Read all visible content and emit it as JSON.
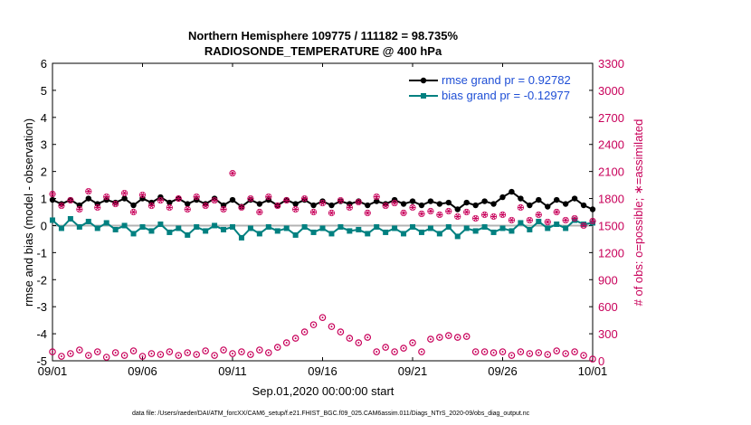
{
  "colors": {
    "rmse": "#000000",
    "bias": "#008080",
    "obs": "#c8005a",
    "legend_text": "#1f4fd6",
    "zero_line": "#b3b3b3"
  },
  "chart_data": {
    "type": "line",
    "title_line1": "Northern Hemisphere 109775 / 111182 = 98.735%",
    "title_line2": "RADIOSONDE_TEMPERATURE @ 400 hPa",
    "xlabel": "Sep.01,2020 00:00:00 start",
    "ylabel_left": "rmse and bias (model - observation)",
    "ylabel_right": "# of obs: o=possible; ∗=assimilated",
    "xlim": [
      0,
      30
    ],
    "ylim_left": [
      -5,
      6
    ],
    "ylim_right": [
      0,
      3300
    ],
    "x_ticks": [
      0,
      5,
      10,
      15,
      20,
      25,
      30
    ],
    "x_tick_labels": [
      "09/01",
      "09/06",
      "09/11",
      "09/16",
      "09/21",
      "09/26",
      "10/01"
    ],
    "y_ticks_left": [
      -5,
      -4,
      -3,
      -2,
      -1,
      0,
      1,
      2,
      3,
      4,
      5,
      6
    ],
    "y_ticks_right": [
      0,
      300,
      600,
      900,
      1200,
      1500,
      1800,
      2100,
      2400,
      2700,
      3000,
      3300
    ],
    "legend": [
      {
        "name": "rmse grand pr = 0.92782",
        "series": "rmse"
      },
      {
        "name": "bias grand pr = -0.12977",
        "series": "bias"
      }
    ],
    "series": [
      {
        "name": "rmse",
        "x": [
          0,
          0.5,
          1,
          1.5,
          2,
          2.5,
          3,
          3.5,
          4,
          4.5,
          5,
          5.5,
          6,
          6.5,
          7,
          7.5,
          8,
          8.5,
          9,
          9.5,
          10,
          10.5,
          11,
          11.5,
          12,
          12.5,
          13,
          13.5,
          14,
          14.5,
          15,
          15.5,
          16,
          16.5,
          17,
          17.5,
          18,
          18.5,
          19,
          19.5,
          20,
          20.5,
          21,
          21.5,
          22,
          22.5,
          23,
          23.5,
          24,
          24.5,
          25,
          25.5,
          26,
          26.5,
          27,
          27.5,
          28,
          28.5,
          29,
          29.5,
          30
        ],
        "values": [
          0.95,
          0.8,
          0.95,
          0.75,
          1.0,
          0.8,
          0.95,
          0.85,
          1.0,
          0.75,
          1.0,
          0.85,
          1.05,
          0.85,
          1.0,
          0.8,
          0.95,
          0.8,
          1.0,
          0.75,
          0.95,
          0.7,
          0.95,
          0.8,
          0.95,
          0.75,
          0.95,
          0.8,
          0.95,
          0.75,
          0.9,
          0.75,
          0.9,
          0.8,
          0.9,
          0.75,
          0.9,
          0.8,
          0.95,
          0.8,
          0.9,
          0.75,
          0.9,
          0.8,
          0.85,
          0.6,
          0.85,
          0.75,
          0.9,
          0.8,
          1.05,
          1.25,
          1.0,
          0.75,
          0.95,
          0.7,
          0.95,
          0.8,
          1.0,
          0.75,
          0.6
        ]
      },
      {
        "name": "bias",
        "x": [
          0,
          0.5,
          1,
          1.5,
          2,
          2.5,
          3,
          3.5,
          4,
          4.5,
          5,
          5.5,
          6,
          6.5,
          7,
          7.5,
          8,
          8.5,
          9,
          9.5,
          10,
          10.5,
          11,
          11.5,
          12,
          12.5,
          13,
          13.5,
          14,
          14.5,
          15,
          15.5,
          16,
          16.5,
          17,
          17.5,
          18,
          18.5,
          19,
          19.5,
          20,
          20.5,
          21,
          21.5,
          22,
          22.5,
          23,
          23.5,
          24,
          24.5,
          25,
          25.5,
          26,
          26.5,
          27,
          27.5,
          28,
          28.5,
          29,
          29.5,
          30
        ],
        "values": [
          0.2,
          -0.1,
          0.25,
          -0.05,
          0.15,
          -0.1,
          0.1,
          -0.15,
          0.0,
          -0.3,
          -0.05,
          -0.2,
          0.05,
          -0.25,
          -0.1,
          -0.35,
          -0.05,
          -0.2,
          0.0,
          -0.15,
          -0.05,
          -0.45,
          -0.1,
          -0.3,
          -0.05,
          -0.2,
          -0.1,
          -0.35,
          -0.05,
          -0.25,
          -0.1,
          -0.3,
          -0.05,
          -0.2,
          -0.15,
          -0.3,
          -0.05,
          -0.25,
          -0.1,
          -0.3,
          -0.05,
          -0.25,
          -0.1,
          -0.3,
          -0.05,
          -0.4,
          -0.1,
          -0.2,
          -0.05,
          -0.25,
          -0.1,
          -0.2,
          0.1,
          -0.15,
          0.15,
          -0.1,
          0.05,
          -0.1,
          0.2,
          0.05,
          0.1
        ]
      },
      {
        "name": "obs_possible",
        "axis": "right",
        "x": [
          0,
          0.5,
          1,
          1.5,
          2,
          2.5,
          3,
          3.5,
          4,
          4.5,
          5,
          5.5,
          6,
          6.5,
          7,
          7.5,
          8,
          8.5,
          9,
          9.5,
          10,
          10.5,
          11,
          11.5,
          12,
          12.5,
          13,
          13.5,
          14,
          14.5,
          15,
          15.5,
          16,
          16.5,
          17,
          17.5,
          18,
          18.5,
          19,
          19.5,
          20,
          20.5,
          21,
          21.5,
          22,
          22.5,
          23,
          23.5,
          24,
          24.5,
          25,
          25.5,
          26,
          26.5,
          27,
          27.5,
          28,
          28.5,
          29,
          29.5,
          30
        ],
        "values": [
          100,
          50,
          80,
          120,
          60,
          100,
          40,
          90,
          60,
          110,
          50,
          80,
          70,
          100,
          60,
          90,
          70,
          110,
          60,
          120,
          80,
          100,
          70,
          120,
          90,
          150,
          200,
          250,
          320,
          400,
          480,
          380,
          320,
          250,
          200,
          260,
          100,
          150,
          100,
          140,
          200,
          100,
          240,
          260,
          280,
          260,
          270,
          100,
          100,
          90,
          100,
          60,
          100,
          80,
          90,
          70,
          110,
          80,
          100,
          60,
          20
        ]
      },
      {
        "name": "obs_assimilated",
        "axis": "right",
        "x": [
          0,
          0.5,
          1,
          1.5,
          2,
          2.5,
          3,
          3.5,
          4,
          4.5,
          5,
          5.5,
          6,
          6.5,
          7,
          7.5,
          8,
          8.5,
          9,
          9.5,
          10,
          10.5,
          11,
          11.5,
          12,
          12.5,
          13,
          13.5,
          14,
          14.5,
          15,
          15.5,
          16,
          16.5,
          17,
          17.5,
          18,
          18.5,
          19,
          19.5,
          20,
          20.5,
          21,
          21.5,
          22,
          22.5,
          23,
          23.5,
          24,
          24.5,
          25,
          25.5,
          26,
          26.5,
          27,
          27.5,
          28,
          28.5,
          29,
          29.5,
          30
        ],
        "values": [
          1850,
          1720,
          1780,
          1680,
          1880,
          1700,
          1820,
          1740,
          1860,
          1650,
          1840,
          1720,
          1780,
          1700,
          1800,
          1680,
          1820,
          1720,
          1780,
          1680,
          2080,
          1700,
          1800,
          1650,
          1820,
          1720,
          1780,
          1680,
          1800,
          1650,
          1750,
          1640,
          1780,
          1700,
          1760,
          1640,
          1820,
          1720,
          1750,
          1640,
          1700,
          1630,
          1660,
          1620,
          1660,
          1600,
          1650,
          1580,
          1620,
          1600,
          1620,
          1560,
          1700,
          1560,
          1620,
          1540,
          1650,
          1560,
          1580,
          1500,
          1550
        ]
      }
    ],
    "footer": "data file: /Users/raeder/DAI/ATM_forcXX/CAM6_setup/f.e21.FHIST_BGC.f09_025.CAM6assim.011/Diags_NTrS_2020-09/obs_diag_output.nc"
  }
}
